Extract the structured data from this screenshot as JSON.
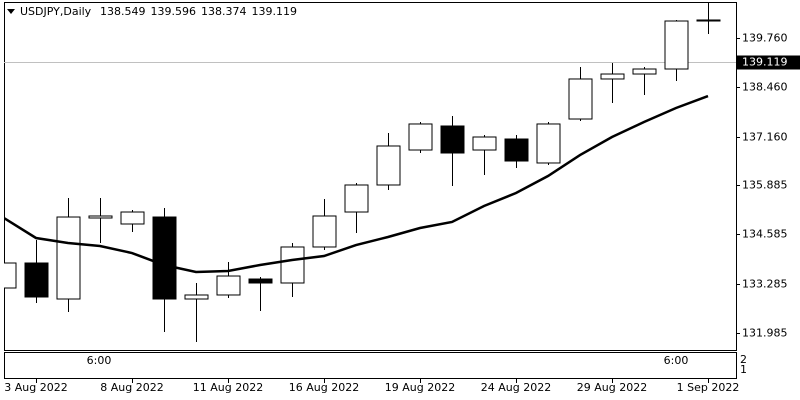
{
  "chart_data": {
    "type": "candlestick",
    "title": "USDJPY,Daily",
    "ohlc_header": [
      138.549,
      139.596,
      138.374,
      139.119
    ],
    "categories": [
      null,
      "3 Aug 2022",
      null,
      null,
      "8 Aug 2022",
      null,
      null,
      "11 Aug 2022",
      null,
      null,
      "16 Aug 2022",
      null,
      null,
      "19 Aug 2022",
      null,
      null,
      "24 Aug 2022",
      null,
      null,
      "29 Aug 2022",
      null,
      null,
      "1 Sep 2022"
    ],
    "open": [
      133.171,
      133.83,
      132.881,
      135.016,
      134.858,
      135.042,
      132.881,
      132.987,
      133.408,
      133.303,
      134.252,
      135.174,
      135.886,
      136.808,
      137.441,
      136.808,
      137.098,
      136.466,
      137.625,
      138.68,
      138.811,
      138.943,
      140.208
    ],
    "high": [
      134.568,
      134.436,
      135.543,
      135.543,
      135.227,
      135.28,
      133.303,
      133.856,
      133.461,
      134.357,
      135.517,
      135.938,
      137.256,
      137.546,
      137.704,
      137.204,
      137.204,
      137.546,
      138.996,
      139.101,
      138.996,
      140.235,
      140.683
    ],
    "low": [
      132.275,
      132.776,
      132.538,
      134.357,
      134.647,
      132.011,
      131.747,
      132.907,
      132.565,
      132.934,
      134.173,
      134.62,
      135.754,
      136.729,
      135.859,
      136.149,
      136.334,
      136.413,
      137.573,
      138.047,
      138.258,
      138.627,
      139.866
    ],
    "close": [
      133.83,
      132.934,
      135.042,
      135.069,
      135.174,
      132.881,
      132.987,
      133.487,
      133.303,
      134.252,
      135.069,
      135.886,
      136.914,
      137.494,
      136.729,
      137.151,
      136.518,
      137.494,
      138.68,
      138.811,
      138.943,
      140.208,
      140.235
    ],
    "up_color": "#ffffff",
    "down_color": "#000000",
    "moving_average": {
      "color": "#000000",
      "values": [
        135.016,
        134.489,
        134.357,
        134.278,
        134.093,
        133.777,
        133.593,
        133.619,
        133.777,
        133.909,
        134.014,
        134.304,
        134.515,
        134.752,
        134.911,
        135.332,
        135.675,
        136.123,
        136.676,
        137.151,
        137.546,
        137.915,
        138.231
      ]
    },
    "last_price": 139.119,
    "ylim": [
      131.537,
      140.709
    ],
    "yticks": [
      {
        "value": 139.76,
        "label": "139.760"
      },
      {
        "value": 138.46,
        "label": "138.460"
      },
      {
        "value": 137.16,
        "label": "137.160"
      },
      135.885,
      134.585,
      133.285,
      131.985
    ],
    "subwindow": {
      "time_labels": [
        "6:00",
        "6:00"
      ],
      "scale_labels": [
        2,
        1
      ]
    }
  }
}
